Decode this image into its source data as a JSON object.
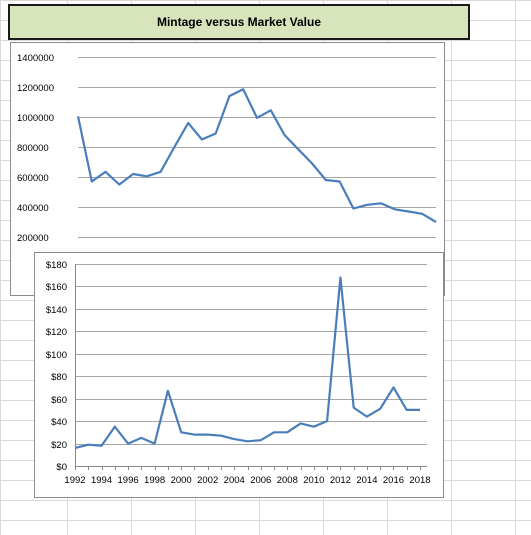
{
  "title": "Mintage versus Market Value",
  "chart_data": [
    {
      "type": "line",
      "title": "",
      "xlabel": "",
      "ylabel": "",
      "x": [
        1992,
        1993,
        1994,
        1995,
        1996,
        1997,
        1998,
        1999,
        2000,
        2001,
        2002,
        2003,
        2004,
        2005,
        2006,
        2007,
        2008,
        2009,
        2010,
        2011,
        2012,
        2013,
        2014,
        2015,
        2016,
        2017,
        2018
      ],
      "ylim": [
        0,
        1400000
      ],
      "yticks": [
        200000,
        400000,
        600000,
        800000,
        1000000,
        1200000,
        1400000
      ],
      "yticklabels": [
        "200000",
        "400000",
        "600000",
        "800000",
        "1000000",
        "1200000",
        "1400000"
      ],
      "grid": true,
      "series": [
        {
          "values": [
            1005000,
            570000,
            635000,
            550000,
            620000,
            605000,
            635000,
            800000,
            960000,
            850000,
            890000,
            1140000,
            1185000,
            995000,
            1045000,
            880000,
            785000,
            690000,
            580000,
            570000,
            390000,
            415000,
            425000,
            385000,
            370000,
            355000,
            300000
          ]
        }
      ]
    },
    {
      "type": "line",
      "title": "",
      "xlabel": "",
      "ylabel": "",
      "x": [
        1992,
        1993,
        1994,
        1995,
        1996,
        1997,
        1998,
        1999,
        2000,
        2001,
        2002,
        2003,
        2004,
        2005,
        2006,
        2007,
        2008,
        2009,
        2010,
        2011,
        2012,
        2013,
        2014,
        2015,
        2016,
        2017,
        2018
      ],
      "xticklabels": [
        "1992",
        "1994",
        "1996",
        "1998",
        "2000",
        "2002",
        "2004",
        "2006",
        "2008",
        "2010",
        "2012",
        "2014",
        "2016",
        "2018"
      ],
      "ylim": [
        0,
        180
      ],
      "yticks": [
        0,
        20,
        40,
        60,
        80,
        100,
        120,
        140,
        160,
        180
      ],
      "yticklabels": [
        "$0",
        "$20",
        "$40",
        "$60",
        "$80",
        "$100",
        "$120",
        "$140",
        "$160",
        "$180"
      ],
      "grid": true,
      "series": [
        {
          "values": [
            16,
            19,
            18,
            35,
            20,
            25,
            20,
            67,
            30,
            28,
            28,
            27,
            24,
            22,
            23,
            30,
            30,
            38,
            35,
            40,
            168,
            52,
            44,
            51,
            70,
            50,
            50
          ]
        }
      ]
    }
  ],
  "colors": {
    "line": "#4a7ebb",
    "grid": "#a6a6a6",
    "title_fill": "#d8e4bc"
  }
}
